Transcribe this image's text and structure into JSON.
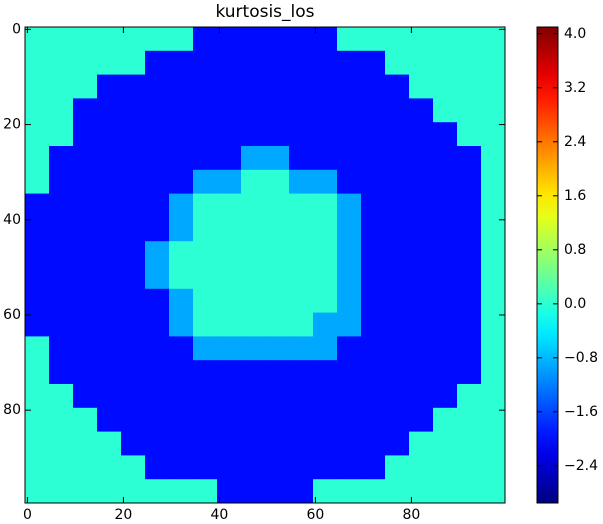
{
  "chart_data": {
    "type": "heatmap",
    "title": "kurtosis_los",
    "colormap": "jet",
    "xlim": [
      -0.5,
      99.5
    ],
    "ylim": [
      99.5,
      -0.5
    ],
    "xticks": [
      0,
      20,
      40,
      60,
      80
    ],
    "yticks": [
      0,
      20,
      40,
      60,
      80
    ],
    "clim": [
      -2.95,
      4.1
    ],
    "cticks": [
      {
        "value": -2.4,
        "label": "−2.4"
      },
      {
        "value": -1.6,
        "label": "−1.6"
      },
      {
        "value": -0.8,
        "label": "−0.8"
      },
      {
        "value": 0,
        "label": "0.0"
      },
      0.8,
      1.6,
      2.4,
      3.2,
      {
        "value": 4,
        "label": "4.0"
      }
    ],
    "z": [
      [
        0,
        0,
        0,
        0,
        0,
        0,
        0,
        -2,
        -2,
        -2,
        -2,
        -2,
        -2,
        0,
        0,
        0,
        0,
        0,
        0,
        0
      ],
      [
        0,
        0,
        0,
        0,
        0,
        -2,
        -2,
        -2,
        -2,
        -2,
        -2,
        -2,
        -2,
        -2,
        -2,
        0,
        0,
        0,
        0,
        0
      ],
      [
        0,
        0,
        0,
        -2,
        -2,
        -2,
        -2,
        -2,
        -2,
        -2,
        -2,
        -2,
        -2,
        -2,
        -2,
        -2,
        0,
        0,
        0,
        0
      ],
      [
        0,
        0,
        -2,
        -2,
        -2,
        -2,
        -2,
        -2,
        -2,
        -2,
        -2,
        -2,
        -2,
        -2,
        -2,
        -2,
        -2,
        0,
        0,
        0
      ],
      [
        0,
        0,
        -2,
        -2,
        -2,
        -2,
        -2,
        -2,
        -2,
        -2,
        -2,
        -2,
        -2,
        -2,
        -2,
        -2,
        -2,
        -2,
        0,
        0
      ],
      [
        0,
        -2,
        -2,
        -2,
        -2,
        -2,
        -2,
        -2,
        -2,
        -0.9,
        -0.9,
        -2,
        -2,
        -2,
        -2,
        -2,
        -2,
        -2,
        -2,
        0
      ],
      [
        0,
        -2,
        -2,
        -2,
        -2,
        -2,
        -2,
        -0.9,
        -0.9,
        0,
        0,
        -0.9,
        -0.9,
        -2,
        -2,
        -2,
        -2,
        -2,
        -2,
        0
      ],
      [
        -2,
        -2,
        -2,
        -2,
        -2,
        -2,
        -0.9,
        0,
        0,
        0,
        0,
        0,
        0,
        -0.9,
        -2,
        -2,
        -2,
        -2,
        -2,
        0
      ],
      [
        -2,
        -2,
        -2,
        -2,
        -2,
        -2,
        -0.9,
        0,
        0,
        0,
        0,
        0,
        0,
        -0.9,
        -2,
        -2,
        -2,
        -2,
        -2,
        0
      ],
      [
        -2,
        -2,
        -2,
        -2,
        -2,
        -0.9,
        0,
        0,
        0,
        0,
        0,
        0,
        0,
        -0.9,
        -2,
        -2,
        -2,
        -2,
        -2,
        0
      ],
      [
        -2,
        -2,
        -2,
        -2,
        -2,
        -0.9,
        0,
        0,
        0,
        0,
        0,
        0,
        0,
        -0.9,
        -2,
        -2,
        -2,
        -2,
        -2,
        0
      ],
      [
        -2,
        -2,
        -2,
        -2,
        -2,
        -2,
        -0.9,
        0,
        0,
        0,
        0,
        0,
        0,
        -0.9,
        -2,
        -2,
        -2,
        -2,
        -2,
        0
      ],
      [
        -2,
        -2,
        -2,
        -2,
        -2,
        -2,
        -0.9,
        0,
        0,
        0,
        0,
        0,
        -0.9,
        -0.9,
        -2,
        -2,
        -2,
        -2,
        -2,
        0
      ],
      [
        0,
        -2,
        -2,
        -2,
        -2,
        -2,
        -2,
        -0.9,
        -0.9,
        -0.9,
        -0.9,
        -0.9,
        -0.9,
        -2,
        -2,
        -2,
        -2,
        -2,
        -2,
        0
      ],
      [
        0,
        -2,
        -2,
        -2,
        -2,
        -2,
        -2,
        -2,
        -2,
        -2,
        -2,
        -2,
        -2,
        -2,
        -2,
        -2,
        -2,
        -2,
        -2,
        0
      ],
      [
        0,
        0,
        -2,
        -2,
        -2,
        -2,
        -2,
        -2,
        -2,
        -2,
        -2,
        -2,
        -2,
        -2,
        -2,
        -2,
        -2,
        -2,
        0,
        0
      ],
      [
        0,
        0,
        0,
        -2,
        -2,
        -2,
        -2,
        -2,
        -2,
        -2,
        -2,
        -2,
        -2,
        -2,
        -2,
        -2,
        -2,
        0,
        0,
        0
      ],
      [
        0,
        0,
        0,
        0,
        -2,
        -2,
        -2,
        -2,
        -2,
        -2,
        -2,
        -2,
        -2,
        -2,
        -2,
        -2,
        0,
        0,
        0,
        0
      ],
      [
        0,
        0,
        0,
        0,
        0,
        -2,
        -2,
        -2,
        -2,
        -2,
        -2,
        -2,
        -2,
        -2,
        -2,
        0,
        0,
        0,
        0,
        0
      ],
      [
        0,
        0,
        0,
        0,
        0,
        0,
        0,
        0,
        -2,
        -2,
        -2,
        -2,
        0,
        0,
        0,
        0,
        0,
        0,
        0,
        0
      ]
    ]
  }
}
